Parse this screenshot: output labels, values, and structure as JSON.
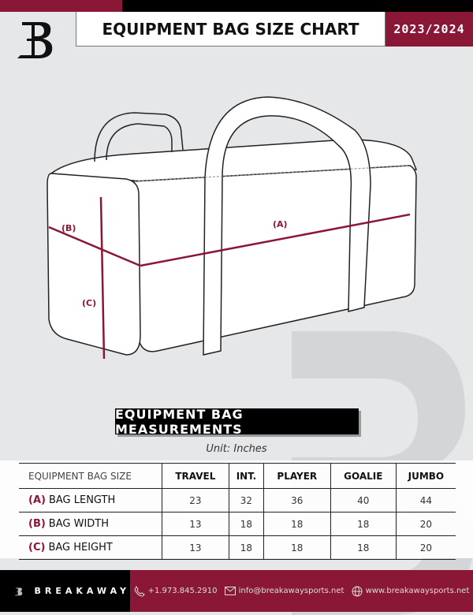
{
  "header": {
    "title": "EQUIPMENT BAG SIZE CHART",
    "season": "2023/2024",
    "logo_letter": "B"
  },
  "diagram": {
    "labels": {
      "a": "(A)",
      "b": "(B)",
      "c": "(C)"
    }
  },
  "section": {
    "title": "EQUIPMENT BAG MEASUREMENTS",
    "unit": "Unit: Inches"
  },
  "table": {
    "columns": [
      "EQUIPMENT BAG SIZE",
      "TRAVEL",
      "INT.",
      "PLAYER",
      "GOALIE",
      "JUMBO"
    ],
    "rows": [
      {
        "tag": "(A)",
        "label": "BAG LENGTH",
        "values": [
          "23",
          "32",
          "36",
          "40",
          "44"
        ]
      },
      {
        "tag": "(B)",
        "label": "BAG WIDTH",
        "values": [
          "13",
          "18",
          "18",
          "18",
          "20"
        ]
      },
      {
        "tag": "(C)",
        "label": "BAG HEIGHT",
        "values": [
          "13",
          "18",
          "18",
          "18",
          "20"
        ]
      }
    ]
  },
  "footer": {
    "brand": "BREAKAWAY",
    "phone": "+1.973.845.2910",
    "email": "info@breakawaysports.net",
    "website": "www.breakawaysports.net"
  },
  "colors": {
    "accent": "#8a1736",
    "dark": "#000000",
    "background": "#e6e7e9"
  }
}
